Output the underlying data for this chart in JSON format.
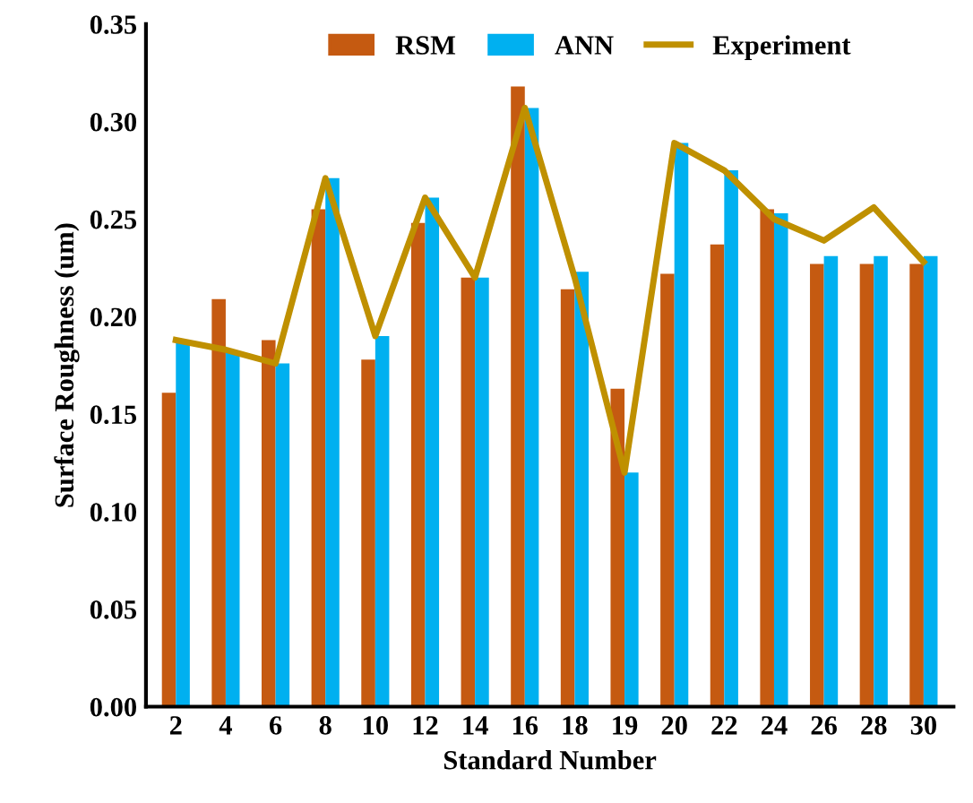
{
  "chart_data": {
    "type": "bar",
    "xlabel": "Standard Number",
    "ylabel": "Surface Roughness (um)",
    "categories": [
      "2",
      "4",
      "6",
      "8",
      "10",
      "12",
      "14",
      "16",
      "18",
      "19",
      "20",
      "22",
      "24",
      "26",
      "28",
      "30"
    ],
    "series": [
      {
        "name": "RSM",
        "color": "#c55a11",
        "values": [
          0.161,
          0.209,
          0.188,
          0.255,
          0.178,
          0.248,
          0.22,
          0.318,
          0.214,
          0.163,
          0.222,
          0.237,
          0.255,
          0.227,
          0.227,
          0.227
        ]
      },
      {
        "name": "ANN",
        "color": "#00b0f0",
        "values": [
          0.187,
          0.182,
          0.176,
          0.271,
          0.19,
          0.261,
          0.22,
          0.307,
          0.223,
          0.12,
          0.289,
          0.275,
          0.253,
          0.231,
          0.231,
          0.231
        ]
      },
      {
        "name": "Experiment",
        "type": "line",
        "color": "#bf9000",
        "values": [
          0.188,
          0.183,
          0.176,
          0.271,
          0.19,
          0.261,
          0.22,
          0.307,
          0.22,
          0.12,
          0.289,
          0.275,
          0.25,
          0.239,
          0.256,
          0.228
        ]
      }
    ],
    "ylim": [
      0,
      0.35
    ],
    "yticks": [
      {
        "value": 0,
        "label": "0.00"
      },
      {
        "value": 0.05,
        "label": "0.05"
      },
      {
        "value": 0.1,
        "label": "0.10"
      },
      {
        "value": 0.15,
        "label": "0.15"
      },
      {
        "value": 0.2,
        "label": "0.20"
      },
      {
        "value": 0.25,
        "label": "0.25"
      },
      {
        "value": 0.3,
        "label": "0.30"
      },
      {
        "value": 0.35,
        "label": "0.35"
      }
    ],
    "grid": false,
    "legend": "top",
    "marker": "none",
    "line_style": "solid"
  }
}
